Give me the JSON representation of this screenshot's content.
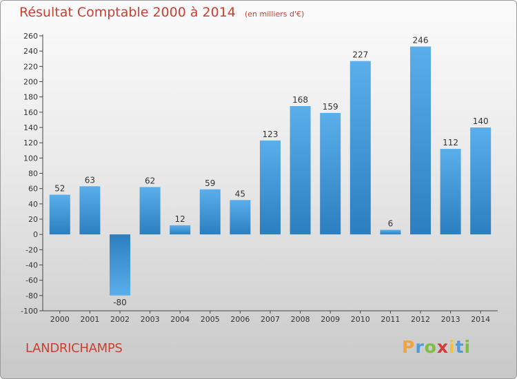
{
  "chart_data": {
    "type": "bar",
    "title": "Résultat Comptable 2000 à 2014",
    "subtitle": "(en milliers d'€)",
    "categories": [
      "2000",
      "2001",
      "2002",
      "2003",
      "2004",
      "2005",
      "2006",
      "2007",
      "2008",
      "2009",
      "2010",
      "2011",
      "2012",
      "2013",
      "2014"
    ],
    "values": [
      52,
      63,
      -80,
      62,
      12,
      59,
      45,
      123,
      168,
      159,
      227,
      6,
      246,
      112,
      140
    ],
    "ylim": [
      -100,
      260
    ],
    "yticks": [
      -100,
      -80,
      -60,
      -40,
      -20,
      0,
      20,
      40,
      60,
      80,
      100,
      120,
      140,
      160,
      180,
      200,
      220,
      240,
      260
    ],
    "xlabel": "",
    "ylabel": "",
    "grid": false,
    "bar_color_light": "#5aaeea",
    "bar_color_dark": "#2b7fc0"
  },
  "commune": "LANDRICHAMPS",
  "brand": {
    "letters": [
      "P",
      "r",
      "o",
      "x",
      "i",
      "t",
      "i"
    ],
    "colors": [
      "#f2a33a",
      "#4f9bd9",
      "#7fbf3f",
      "#d63a3a",
      "#f2c23a",
      "#4f9bd9",
      "#7fbf3f"
    ]
  },
  "colors": {
    "title": "#cc3f2f",
    "axis": "#444444"
  }
}
